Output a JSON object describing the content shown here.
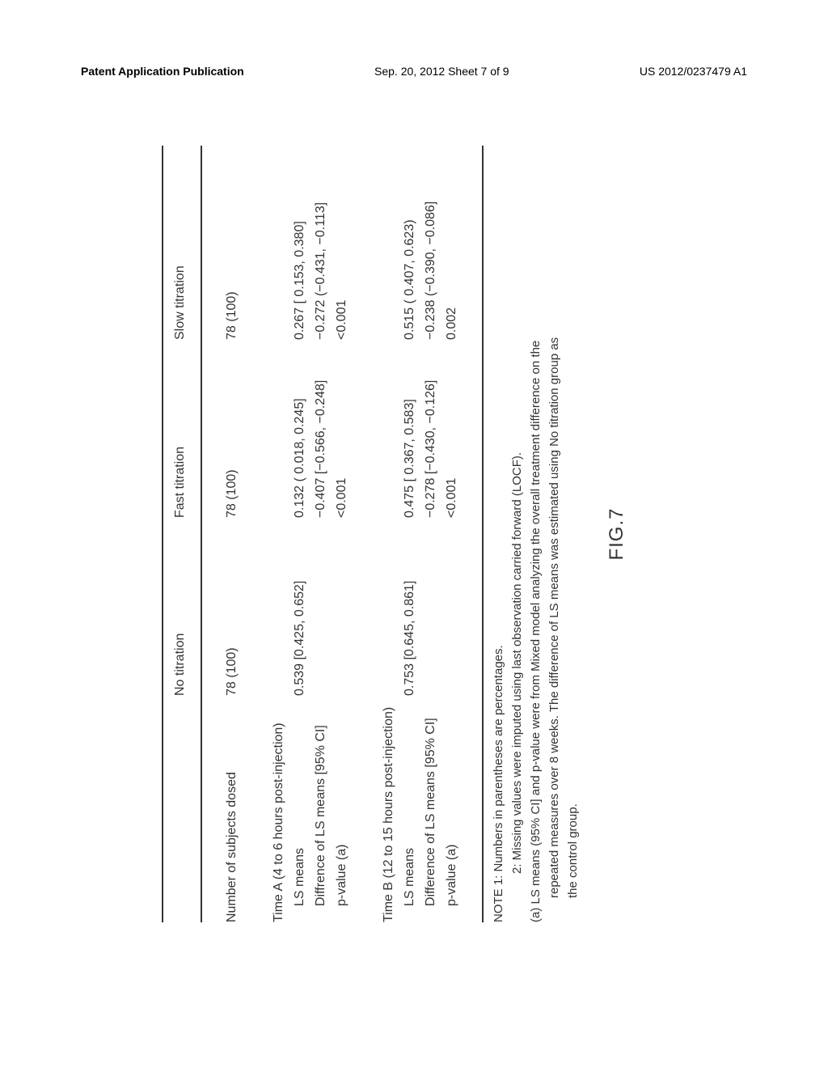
{
  "header": {
    "left": "Patent Application Publication",
    "center": "Sep. 20, 2012  Sheet 7 of 9",
    "right": "US 2012/0237479 A1"
  },
  "table": {
    "columns": [
      "",
      "No titration",
      "Fast titration",
      "Slow titration"
    ],
    "rows": {
      "subjects_label": "Number of subjects dosed",
      "subjects": [
        "78 (100)",
        "78 (100)",
        "78 (100)"
      ],
      "timeA_header": "Time A (4 to 6 hours post-injection)",
      "ls_means_label": "LS means",
      "diff_label": "Diffrence of LS means [95% CI]",
      "pvalue_label": "p-value (a)",
      "timeA_ls": [
        "0.539 [0.425, 0.652]",
        "0.132 ( 0.018, 0.245]",
        "0.267 [ 0.153, 0.380]"
      ],
      "timeA_diff": [
        "",
        "−0.407 [−0.566, −0.248]",
        "−0.272 (−0.431, −0.113]"
      ],
      "timeA_p": [
        "",
        "<0.001",
        "<0.001"
      ],
      "timeB_header": "Time B (12 to 15 hours post-injection)",
      "diff_label_b": "Difference of LS means [95% CI]",
      "timeB_ls": [
        "0.753 [0.645, 0.861]",
        "0.475 [ 0.367, 0.583]",
        "0.515 ( 0.407, 0.623)"
      ],
      "timeB_diff": [
        "",
        "−0.278 [−0.430, −0.126]",
        "−0.238 (−0.390, −0.086]"
      ],
      "timeB_p": [
        "",
        "<0.001",
        "0.002"
      ]
    }
  },
  "notes": {
    "note1": "NOTE 1: Numbers in parentheses are percentages.",
    "note2": "2: Missing values were imputed using last observation carried forward (LOCF).",
    "noteA_1": "(a) LS means (95% CI] and p-value were from Mixed model analyzing the overall treatment difference on the",
    "noteA_2": "repeated measures over 8 weeks. The difference of LS means was estimated using No titration group as",
    "noteA_3": "the control group."
  },
  "figure_label": "FIG.7",
  "styling": {
    "background_color": "#ffffff",
    "text_color": "#333333",
    "line_color": "#333333",
    "font_family": "Arial",
    "body_fontsize": 16,
    "notes_fontsize": 15,
    "figure_fontsize": 24,
    "rotation_deg": -90
  }
}
